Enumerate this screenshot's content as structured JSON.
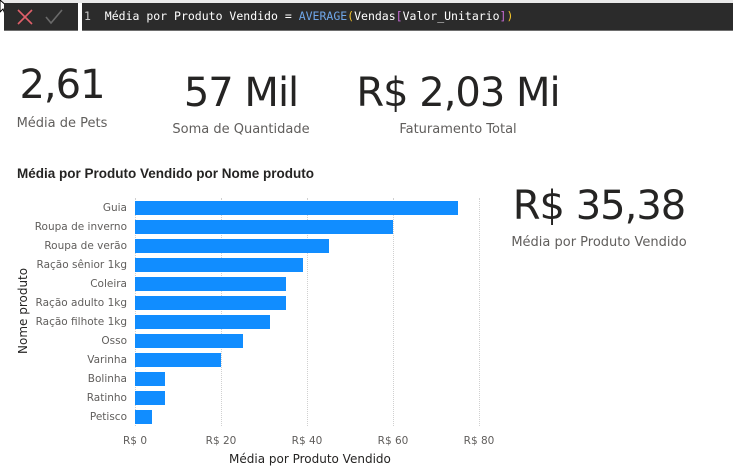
{
  "formula_bar": {
    "cancel_icon": "x-icon",
    "commit_icon": "check-icon",
    "line_number": "1",
    "measure_name": "Média por Produto Vendido",
    "operator": "=",
    "function": "AVERAGE",
    "open_paren": "(",
    "table": "Vendas",
    "open_bracket": "[",
    "column": "Valor_Unitario",
    "close_bracket": "]",
    "close_paren": ")",
    "colors": {
      "function": "#6fa6e8",
      "paren": "#f2c32b",
      "bracket": "#c86bd6",
      "background": "#2b2b2b"
    }
  },
  "cards": [
    {
      "value": "2,61",
      "label": "Média de Pets"
    },
    {
      "value": "57 Mil",
      "label": "Soma de Quantidade"
    },
    {
      "value": "R$ 2,03 Mi",
      "label": "Faturamento Total"
    },
    {
      "value": "R$ 35,38",
      "label": "Média por Produto Vendido"
    }
  ],
  "chart": {
    "title": "Média por Produto Vendido por Nome produto",
    "y_title": "Nome produto",
    "x_title": "Média por Produto Vendido",
    "bar_color": "#118dff",
    "ticks": [
      "R$ 0",
      "R$ 20",
      "R$ 40",
      "R$ 60",
      "R$ 80"
    ]
  },
  "chart_data": {
    "type": "bar",
    "orientation": "horizontal",
    "title": "Média por Produto Vendido por Nome produto",
    "xlabel": "Média por Produto Vendido",
    "ylabel": "Nome produto",
    "categories": [
      "Guia",
      "Roupa de inverno",
      "Roupa de verão",
      "Ração sênior 1kg",
      "Coleira",
      "Ração adulto 1kg",
      "Ração filhote 1kg",
      "Osso",
      "Varinha",
      "Bolinha",
      "Ratinho",
      "Petisco"
    ],
    "values": [
      75,
      60,
      45,
      39,
      35,
      35,
      31.5,
      25,
      20,
      7,
      7,
      4
    ],
    "xlim": [
      0,
      80
    ],
    "x_ticks": [
      "R$ 0",
      "R$ 20",
      "R$ 40",
      "R$ 60",
      "R$ 80"
    ],
    "grid": true,
    "legend": "none"
  }
}
